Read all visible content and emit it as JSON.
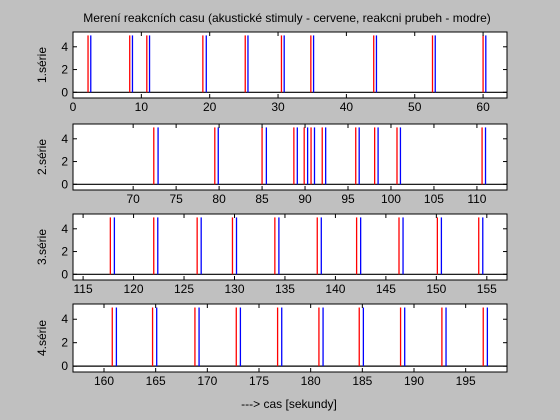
{
  "figure": {
    "background": "#c0c0c0",
    "axes_background": "#ffffff",
    "title": "Merení reakcních casu (akustické stimuly - cervene, reakcni prubeh - modre)",
    "xlabel": "---> cas [sekundy]",
    "stimulus_color": "#ff0000",
    "response_color": "#0000ff",
    "baseline_color": "#000000"
  },
  "chart_data": [
    {
      "type": "line",
      "ylabel": "1.série",
      "xlim": [
        0,
        63.5
      ],
      "ylim": [
        -0.5,
        5.3
      ],
      "xticks": [
        0,
        10,
        20,
        30,
        40,
        50,
        60
      ],
      "yticks": [
        0,
        2,
        4
      ],
      "pulse_height": 5,
      "series": [
        {
          "values": [
            2.2,
            8.3,
            10.8,
            19.0,
            25.2,
            30.5,
            34.8,
            44.0,
            52.6,
            60.0
          ]
        },
        {
          "values": [
            2.6,
            8.7,
            11.2,
            19.5,
            25.6,
            30.9,
            35.2,
            44.4,
            53.0,
            60.4
          ]
        }
      ]
    },
    {
      "type": "line",
      "ylabel": "2.série",
      "xlim": [
        63,
        113.5
      ],
      "ylim": [
        -0.5,
        5.3
      ],
      "xticks": [
        70,
        75,
        80,
        85,
        90,
        95,
        100,
        105,
        110
      ],
      "yticks": [
        0,
        2,
        4
      ],
      "pulse_height": 5,
      "series": [
        {
          "values": [
            72.4,
            79.5,
            85.0,
            88.7,
            89.9,
            90.7,
            92.0,
            95.9,
            98.1,
            100.7,
            110.6
          ]
        },
        {
          "values": [
            72.9,
            79.9,
            85.5,
            89.1,
            90.3,
            91.1,
            92.4,
            96.3,
            98.5,
            101.1,
            111.0
          ]
        }
      ]
    },
    {
      "type": "line",
      "ylabel": "3.série",
      "xlim": [
        114,
        157
      ],
      "ylim": [
        -0.5,
        5.3
      ],
      "xticks": [
        115,
        120,
        125,
        130,
        135,
        140,
        145,
        150,
        155
      ],
      "yticks": [
        0,
        2,
        4
      ],
      "pulse_height": 5,
      "series": [
        {
          "values": [
            117.7,
            122.0,
            126.3,
            129.8,
            134.0,
            138.2,
            142.1,
            146.3,
            150.1,
            154.2
          ]
        },
        {
          "values": [
            118.1,
            122.4,
            126.7,
            130.2,
            134.4,
            138.6,
            142.5,
            146.7,
            150.5,
            154.6
          ]
        }
      ]
    },
    {
      "type": "line",
      "ylabel": "4.série",
      "xlim": [
        157,
        199
      ],
      "ylim": [
        -0.5,
        5.3
      ],
      "xticks": [
        160,
        165,
        170,
        175,
        180,
        185,
        190,
        195
      ],
      "yticks": [
        0,
        2,
        4
      ],
      "pulse_height": 5,
      "series": [
        {
          "values": [
            160.8,
            164.7,
            168.8,
            172.8,
            176.8,
            180.8,
            184.7,
            188.7,
            192.7,
            196.7
          ]
        },
        {
          "values": [
            161.2,
            165.1,
            169.2,
            173.2,
            177.2,
            181.2,
            185.1,
            189.1,
            193.1,
            197.1
          ]
        }
      ]
    }
  ]
}
